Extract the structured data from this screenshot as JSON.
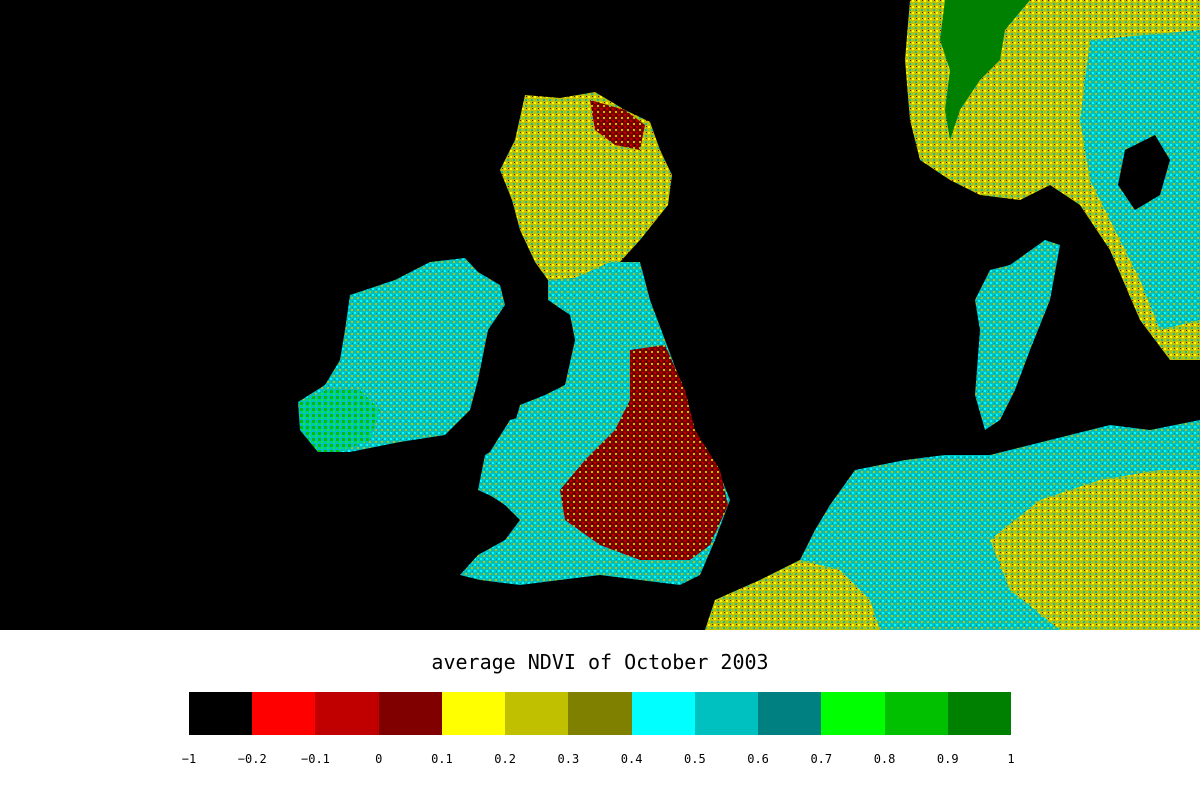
{
  "map": {
    "title": "average NDVI of October 2003",
    "background_color": "#000000",
    "legend": {
      "bins": [
        {
          "range": [
            -1,
            -0.2
          ],
          "color": "#000000"
        },
        {
          "range": [
            -0.2,
            -0.1
          ],
          "color": "#ff0000"
        },
        {
          "range": [
            -0.1,
            0
          ],
          "color": "#c00000"
        },
        {
          "range": [
            0,
            0.1
          ],
          "color": "#800000"
        },
        {
          "range": [
            0.1,
            0.2
          ],
          "color": "#ffff00"
        },
        {
          "range": [
            0.2,
            0.3
          ],
          "color": "#c0c000"
        },
        {
          "range": [
            0.3,
            0.4
          ],
          "color": "#808000"
        },
        {
          "range": [
            0.4,
            0.5
          ],
          "color": "#00ffff"
        },
        {
          "range": [
            0.5,
            0.6
          ],
          "color": "#00c0c0"
        },
        {
          "range": [
            0.6,
            0.7
          ],
          "color": "#008080"
        },
        {
          "range": [
            0.7,
            0.8
          ],
          "color": "#00ff00"
        },
        {
          "range": [
            0.8,
            0.9
          ],
          "color": "#00c000"
        },
        {
          "range": [
            0.9,
            1
          ],
          "color": "#008000"
        }
      ],
      "tick_labels": [
        "−1",
        "−0.2",
        "−0.1",
        "0",
        "0.1",
        "0.2",
        "0.3",
        "0.4",
        "0.5",
        "0.6",
        "0.7",
        "0.8",
        "0.9",
        "1"
      ]
    }
  }
}
